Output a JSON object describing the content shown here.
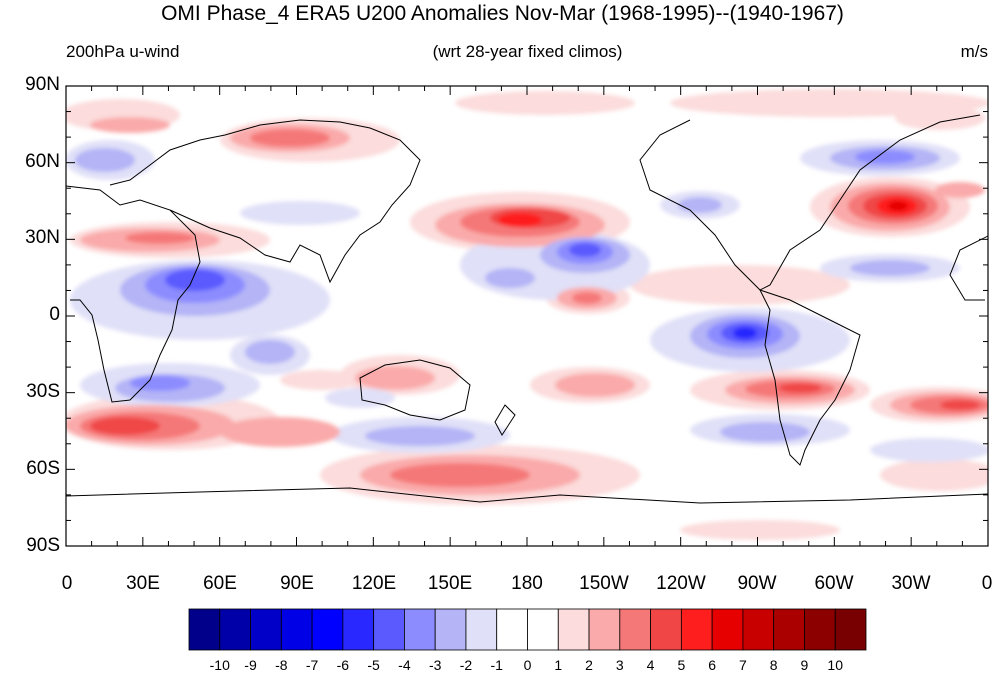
{
  "title": "OMI Phase_4 ERA5 U200 Anomalies Nov-Mar (1968-1995)--(1940-1967)",
  "subtitle_left": "200hPa u-wind",
  "subtitle_center": "(wrt 28-year fixed climos)",
  "subtitle_right": "m/s",
  "y_axis": {
    "labels": [
      "90N",
      "60N",
      "30N",
      "0",
      "30S",
      "60S",
      "90S"
    ]
  },
  "x_axis": {
    "labels": [
      "0",
      "30E",
      "60E",
      "90E",
      "120E",
      "150E",
      "180",
      "150W",
      "120W",
      "90W",
      "60W",
      "30W",
      "0"
    ]
  },
  "colorbar": {
    "labels": [
      "-10",
      "-9",
      "-8",
      "-7",
      "-6",
      "-5",
      "-4",
      "-3",
      "-2",
      "-1",
      "0",
      "1",
      "2",
      "3",
      "4",
      "5",
      "6",
      "7",
      "8",
      "9",
      "10"
    ],
    "colors": [
      "#00008b",
      "#0000a8",
      "#0000c8",
      "#0000e6",
      "#0000ff",
      "#2828ff",
      "#5a5aff",
      "#8c8cff",
      "#b4b4f7",
      "#e0e0f8",
      "#ffffff",
      "#ffffff",
      "#fcdcdc",
      "#faaaaa",
      "#f57878",
      "#f04646",
      "#ff1e1e",
      "#e60000",
      "#c80000",
      "#aa0000",
      "#8c0000",
      "#780000"
    ]
  },
  "anomaly_blobs": [
    {
      "region": "Central North Atlantic",
      "value": 7
    },
    {
      "region": "Subtropical North Pacific",
      "value": 6
    },
    {
      "region": "Hawaii",
      "value": -5
    },
    {
      "region": "Eastern tropical Pacific",
      "value": -6
    },
    {
      "region": "East Africa / Arabian Sea",
      "value": -4
    },
    {
      "region": "South Atlantic (40S)",
      "value": 5
    },
    {
      "region": "Southern Africa (40S)",
      "value": 5
    },
    {
      "region": "Southeast Pacific (30S)",
      "value": 4
    },
    {
      "region": "Subpolar South Pacific",
      "value": 3
    },
    {
      "region": "Northeast Canada",
      "value": -3
    },
    {
      "region": "Arabian Peninsula / North Africa",
      "value": 3
    },
    {
      "region": "Tropical North Pacific (150W)",
      "value": 3
    }
  ]
}
